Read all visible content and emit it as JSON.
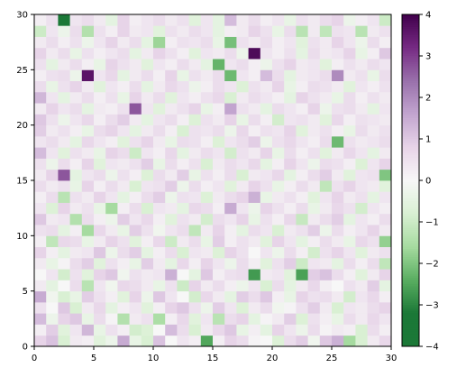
{
  "chart_data": {
    "type": "heatmap",
    "colormap": "PRGn",
    "colormap_endpoints": {
      "low": "#1b7837",
      "mid": "#f7f7f7",
      "high": "#762a83"
    },
    "grid_size": [
      30,
      30
    ],
    "xlim": [
      0,
      30
    ],
    "ylim": [
      0,
      30
    ],
    "x_ticks": [
      0,
      5,
      10,
      15,
      20,
      25,
      30
    ],
    "y_ticks": [
      0,
      5,
      10,
      15,
      20,
      25,
      30
    ],
    "vmin": -4,
    "vmax": 4,
    "colorbar_ticks": [
      4,
      3,
      2,
      1,
      0,
      -1,
      -2,
      -3,
      -4
    ],
    "colorbar_tick_labels": [
      "4",
      "3",
      "2",
      "1",
      "0",
      "−1",
      "−2",
      "−3",
      "−4"
    ],
    "values": [
      [
        0.8,
        1.1,
        -0.8,
        0.3,
        0.2,
        -0.6,
        -0.3,
        1.5,
        -0.4,
        -0.8,
        1.1,
        0.0,
        0.4,
        0.2,
        -2.5,
        0.2,
        0.8,
        0.6,
        0.1,
        0.0,
        -0.7,
        0.6,
        0.9,
        -0.2,
        1.0,
        1.4,
        -1.6,
        -0.8,
        0.3,
        0.7
      ],
      [
        0.2,
        0.9,
        -0.6,
        0.4,
        1.3,
        -0.4,
        0.5,
        0.2,
        -0.9,
        -0.7,
        0.0,
        1.2,
        0.6,
        -0.8,
        0.3,
        0.7,
        1.0,
        -0.4,
        0.2,
        -0.5,
        0.8,
        0.4,
        -0.3,
        0.6,
        0.1,
        0.3,
        0.2,
        -0.8,
        0.6,
        0.2
      ],
      [
        1.2,
        -0.3,
        0.8,
        1.0,
        -0.4,
        0.6,
        0.1,
        -1.4,
        0.3,
        0.5,
        -1.5,
        0.2,
        0.7,
        -0.6,
        0.4,
        -1.3,
        0.6,
        0.8,
        -0.5,
        0.1,
        0.3,
        0.9,
        -0.7,
        0.5,
        0.2,
        -0.4,
        0.6,
        0.3,
        0.7,
        0.4
      ],
      [
        0.5,
        0.0,
        1.0,
        -0.8,
        0.3,
        0.7,
        -0.5,
        0.2,
        0.4,
        -0.6,
        0.2,
        0.8,
        1.0,
        0.5,
        -0.3,
        0.9,
        0.4,
        -0.7,
        0.3,
        0.6,
        -0.2,
        0.1,
        0.5,
        0.9,
        0.3,
        -0.8,
        0.4,
        0.3,
        0.6,
        0.8
      ],
      [
        1.5,
        -0.2,
        -0.8,
        -0.4,
        0.9,
        0.5,
        0.2,
        -0.6,
        0.8,
        -0.3,
        1.0,
        0.4,
        0.0,
        -0.9,
        0.7,
        0.3,
        -0.5,
        0.9,
        0.6,
        1.0,
        0.2,
        -0.4,
        0.8,
        0.5,
        0.6,
        0.3,
        -0.9,
        0.4,
        0.7,
        0.2
      ],
      [
        0.3,
        -0.5,
        0.0,
        0.6,
        -1.3,
        0.4,
        -0.2,
        0.7,
        0.6,
        0.3,
        -0.4,
        0.5,
        -1.0,
        0.8,
        0.3,
        0.6,
        0.2,
        -0.3,
        0.4,
        -0.8,
        0.6,
        -0.5,
        0.3,
        0.7,
        0.2,
        0.0,
        0.5,
        0.3,
        0.9,
        -0.5
      ],
      [
        0.0,
        0.4,
        -0.9,
        0.5,
        -0.6,
        0.8,
        1.0,
        -0.2,
        0.5,
        0.3,
        0.4,
        1.4,
        0.0,
        -0.5,
        1.0,
        0.2,
        0.5,
        0.6,
        -2.7,
        0.3,
        0.4,
        -0.6,
        -2.6,
        0.9,
        1.1,
        0.6,
        0.2,
        -0.6,
        0.3,
        0.8
      ],
      [
        0.3,
        -0.4,
        0.1,
        0.6,
        0.9,
        -0.6,
        0.5,
        0.2,
        -0.4,
        0.9,
        0.3,
        -0.5,
        0.7,
        0.2,
        0.8,
        0.4,
        -0.3,
        0.6,
        0.2,
        -0.6,
        0.5,
        0.9,
        -1.0,
        0.4,
        0.3,
        -0.5,
        0.6,
        0.2,
        0.6,
        -1.2
      ],
      [
        0.8,
        0.2,
        -0.5,
        0.3,
        0.4,
        1.0,
        -0.3,
        0.6,
        0.9,
        -0.5,
        0.2,
        0.6,
        -0.8,
        0.4,
        0.3,
        -0.7,
        0.8,
        0.5,
        0.0,
        0.4,
        -0.3,
        0.6,
        0.2,
        -0.9,
        0.5,
        0.8,
        0.4,
        -0.6,
        0.3,
        0.5
      ],
      [
        0.2,
        -1.2,
        0.7,
        0.6,
        -0.4,
        0.3,
        0.8,
        0.5,
        -0.6,
        0.2,
        0.7,
        -1.0,
        0.3,
        0.6,
        -0.4,
        0.9,
        0.2,
        0.5,
        0.3,
        -0.6,
        0.8,
        0.4,
        -0.5,
        0.2,
        0.6,
        0.3,
        -0.4,
        0.7,
        0.5,
        -1.8
      ],
      [
        0.5,
        0.6,
        -0.5,
        0.2,
        -1.6,
        0.7,
        0.3,
        -0.4,
        0.9,
        0.5,
        -0.2,
        0.4,
        0.6,
        -1.2,
        0.3,
        0.8,
        0.2,
        -0.5,
        0.6,
        0.4,
        -0.8,
        0.3,
        0.5,
        0.9,
        -0.3,
        0.6,
        0.2,
        0.4,
        0.8,
        0.3
      ],
      [
        1.0,
        0.3,
        0.4,
        -1.4,
        0.6,
        0.2,
        -0.3,
        0.9,
        0.4,
        0.7,
        0.2,
        -0.6,
        0.5,
        0.3,
        -0.9,
        0.6,
        0.4,
        0.8,
        -0.4,
        0.5,
        0.2,
        0.7,
        -1.1,
        0.3,
        0.6,
        0.9,
        -0.5,
        0.4,
        0.2,
        0.6
      ],
      [
        0.4,
        -0.7,
        0.8,
        0.3,
        0.5,
        -0.4,
        -1.6,
        0.2,
        0.6,
        -0.8,
        0.4,
        0.3,
        -0.5,
        0.7,
        0.6,
        0.2,
        1.5,
        0.4,
        -0.3,
        0.8,
        0.5,
        0.2,
        0.6,
        -0.4,
        0.3,
        0.7,
        0.5,
        -0.9,
        0.4,
        0.2
      ],
      [
        0.2,
        0.6,
        -1.3,
        0.5,
        0.3,
        0.8,
        0.4,
        -0.5,
        0.2,
        0.6,
        0.9,
        -0.3,
        0.5,
        0.4,
        -0.7,
        0.3,
        0.6,
        0.8,
        1.4,
        -0.4,
        0.3,
        0.5,
        0.2,
        -0.6,
        0.4,
        0.8,
        0.3,
        0.5,
        -0.5,
        0.4
      ],
      [
        0.6,
        0.3,
        0.5,
        -0.4,
        0.8,
        0.2,
        0.6,
        0.3,
        -0.8,
        0.4,
        0.5,
        0.9,
        -0.3,
        0.6,
        0.2,
        0.4,
        -0.6,
        0.3,
        0.8,
        0.5,
        -0.4,
        0.2,
        0.6,
        0.3,
        -1.2,
        0.5,
        0.8,
        0.4,
        0.3,
        -0.6
      ],
      [
        0.3,
        0.8,
        2.7,
        -0.5,
        0.4,
        0.6,
        -0.3,
        0.5,
        0.2,
        -0.7,
        0.6,
        0.3,
        0.9,
        -0.4,
        0.5,
        0.2,
        0.6,
        -0.8,
        0.3,
        0.4,
        0.7,
        -0.5,
        0.2,
        0.6,
        0.9,
        0.3,
        -0.6,
        0.4,
        0.5,
        -2.0
      ],
      [
        0.5,
        -0.3,
        0.6,
        0.2,
        0.8,
        -0.6,
        0.4,
        0.3,
        0.5,
        0.9,
        -0.4,
        0.6,
        0.2,
        0.5,
        -0.8,
        0.3,
        0.6,
        0.4,
        0.7,
        -0.5,
        0.2,
        0.8,
        0.4,
        -0.3,
        0.6,
        0.5,
        0.2,
        -0.7,
        0.4,
        0.8
      ],
      [
        1.2,
        0.4,
        -0.6,
        0.5,
        0.3,
        -0.4,
        0.8,
        0.6,
        -1.0,
        0.4,
        0.2,
        0.7,
        -0.5,
        0.3,
        0.6,
        0.4,
        -0.9,
        0.5,
        0.3,
        0.8,
        -0.4,
        0.6,
        0.2,
        0.5,
        -0.6,
        0.3,
        0.7,
        0.4,
        -0.5,
        0.3
      ],
      [
        0.4,
        0.6,
        0.3,
        -0.5,
        0.7,
        0.4,
        0.2,
        -0.6,
        0.5,
        0.8,
        0.3,
        -0.4,
        0.6,
        0.5,
        0.2,
        -0.7,
        0.4,
        0.6,
        0.9,
        -0.3,
        0.5,
        0.7,
        0.4,
        0.2,
        0.6,
        -2.2,
        0.5,
        0.3,
        0.4,
        0.6
      ],
      [
        0.9,
        0.3,
        0.5,
        0.2,
        -0.4,
        0.6,
        0.8,
        0.4,
        -0.5,
        0.3,
        0.6,
        0.2,
        -0.8,
        0.5,
        0.4,
        0.6,
        -0.3,
        0.7,
        0.2,
        0.5,
        0.4,
        0.8,
        -0.6,
        0.3,
        0.5,
        0.2,
        -0.4,
        0.6,
        0.3,
        0.5
      ],
      [
        1.0,
        0.5,
        -0.3,
        0.4,
        0.7,
        0.2,
        0.6,
        0.9,
        0.3,
        -0.5,
        0.4,
        0.6,
        0.2,
        -0.7,
        0.5,
        0.3,
        0.8,
        -0.4,
        0.6,
        0.2,
        -0.9,
        0.4,
        0.5,
        0.3,
        -0.6,
        0.7,
        0.2,
        0.5,
        0.4,
        0.3
      ],
      [
        0.3,
        0.8,
        0.4,
        0.6,
        -0.5,
        0.3,
        0.2,
        0.5,
        2.7,
        0.4,
        -0.6,
        0.3,
        0.5,
        0.8,
        -0.4,
        0.2,
        1.6,
        0.5,
        0.3,
        -0.5,
        0.6,
        0.4,
        0.2,
        0.8,
        -0.3,
        0.5,
        0.6,
        0.3,
        -0.5,
        0.4
      ],
      [
        1.3,
        0.4,
        -0.5,
        0.3,
        0.6,
        0.2,
        0.5,
        -0.4,
        0.8,
        0.3,
        0.6,
        -0.6,
        0.4,
        0.2,
        0.5,
        0.7,
        -0.8,
        0.3,
        0.6,
        0.4,
        0.2,
        -0.5,
        0.8,
        0.5,
        0.3,
        -0.4,
        0.6,
        0.2,
        0.5,
        0.3
      ],
      [
        0.6,
        -0.4,
        0.5,
        0.8,
        0.3,
        -0.6,
        0.4,
        0.2,
        0.6,
        -0.5,
        0.3,
        0.7,
        0.5,
        -0.3,
        0.2,
        0.6,
        0.4,
        -0.7,
        0.5,
        0.3,
        0.8,
        -0.4,
        0.2,
        0.6,
        0.5,
        0.3,
        -0.6,
        0.4,
        0.2,
        0.5
      ],
      [
        0.2,
        0.5,
        0.6,
        -0.3,
        3.6,
        0.4,
        0.7,
        -0.5,
        0.3,
        0.6,
        0.2,
        0.8,
        -0.4,
        0.5,
        0.3,
        0.6,
        -2.2,
        0.4,
        0.2,
        1.2,
        0.6,
        -0.5,
        0.3,
        0.4,
        0.6,
        2.0,
        0.3,
        0.5,
        -0.4,
        0.6
      ],
      [
        0.5,
        -0.5,
        0.3,
        0.6,
        0.2,
        -0.4,
        0.8,
        0.5,
        0.3,
        -0.6,
        0.4,
        0.2,
        0.6,
        0.3,
        -0.5,
        -2.3,
        0.4,
        0.6,
        0.2,
        -0.3,
        0.5,
        0.8,
        0.3,
        0.4,
        -0.6,
        0.2,
        0.5,
        0.3,
        0.6,
        0.4
      ],
      [
        0.8,
        0.3,
        0.6,
        -0.4,
        0.5,
        0.2,
        0.4,
        0.6,
        -0.5,
        0.3,
        0.8,
        0.5,
        0.2,
        -0.6,
        0.4,
        0.3,
        0.6,
        -0.3,
        3.8,
        0.4,
        0.2,
        0.5,
        -0.5,
        0.6,
        0.3,
        0.4,
        0.8,
        -0.4,
        0.2,
        1.0
      ],
      [
        0.3,
        0.6,
        0.2,
        0.5,
        -0.3,
        0.4,
        0.8,
        0.3,
        0.6,
        -0.5,
        -1.7,
        0.2,
        0.5,
        0.4,
        0.6,
        -0.4,
        -2.1,
        0.5,
        0.3,
        0.6,
        0.2,
        0.4,
        -0.6,
        0.5,
        0.3,
        0.8,
        0.4,
        -0.3,
        0.6,
        0.2
      ],
      [
        -1.0,
        0.4,
        -0.3,
        0.6,
        -1.4,
        0.5,
        0.2,
        0.8,
        0.3,
        0.4,
        -0.6,
        0.5,
        0.3,
        0.6,
        0.4,
        -0.5,
        0.2,
        0.3,
        0.8,
        0.5,
        -0.4,
        0.6,
        -1.3,
        0.3,
        -1.2,
        0.5,
        0.4,
        -1.3,
        0.3,
        0.5
      ],
      [
        0.2,
        0.5,
        -3.6,
        0.4,
        0.6,
        0.3,
        -0.5,
        0.8,
        0.2,
        0.4,
        0.6,
        0.3,
        0.5,
        -0.6,
        0.4,
        -0.5,
        1.2,
        0.3,
        0.6,
        0.2,
        0.4,
        -0.4,
        0.5,
        0.3,
        0.6,
        0.8,
        -0.3,
        0.2,
        0.4,
        -1.0
      ]
    ]
  }
}
